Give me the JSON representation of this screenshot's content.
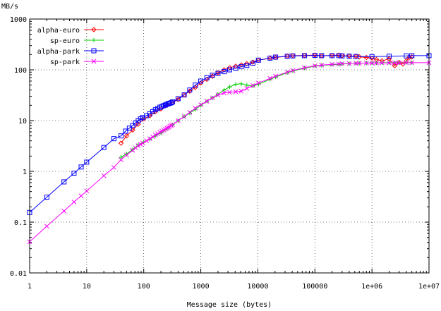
{
  "chart_data": {
    "type": "line",
    "title": "",
    "xlabel": "Message size (bytes)",
    "ylabel": "MB/s",
    "xscale": "log",
    "yscale": "log",
    "xlim": [
      1,
      10000000
    ],
    "ylim": [
      0.01,
      1000
    ],
    "grid": true,
    "legend_position": "top-left",
    "x_ticks": [
      {
        "value": 1,
        "label": "1"
      },
      {
        "value": 10,
        "label": "10"
      },
      {
        "value": 100,
        "label": "100"
      },
      {
        "value": 1000,
        "label": "1000"
      },
      {
        "value": 10000,
        "label": "10000"
      },
      {
        "value": 100000,
        "label": "100000"
      },
      {
        "value": 1000000,
        "label": "1e+06"
      },
      {
        "value": 10000000,
        "label": "1e+07"
      }
    ],
    "y_ticks": [
      {
        "value": 0.01,
        "label": "0.01"
      },
      {
        "value": 0.1,
        "label": "0.1"
      },
      {
        "value": 1,
        "label": "1"
      },
      {
        "value": 10,
        "label": "10"
      },
      {
        "value": 100,
        "label": "100"
      },
      {
        "value": 1000,
        "label": "1000"
      }
    ],
    "series": [
      {
        "name": "alpha-euro",
        "color": "#ff0000",
        "marker": "diamond",
        "points": [
          [
            40,
            3.6
          ],
          [
            50,
            5.0
          ],
          [
            64,
            6.5
          ],
          [
            80,
            8.5
          ],
          [
            100,
            10.8
          ],
          [
            128,
            12.5
          ],
          [
            160,
            15.0
          ],
          [
            200,
            17.0
          ],
          [
            256,
            20.0
          ],
          [
            320,
            23.0
          ],
          [
            400,
            26.0
          ],
          [
            512,
            32.0
          ],
          [
            640,
            38.0
          ],
          [
            800,
            45.0
          ],
          [
            1000,
            55.0
          ],
          [
            1280,
            65.0
          ],
          [
            1600,
            75.0
          ],
          [
            2000,
            88.0
          ],
          [
            2560,
            100.0
          ],
          [
            3200,
            110.0
          ],
          [
            4096,
            118.0
          ],
          [
            5120,
            125.0
          ],
          [
            6400,
            132.0
          ],
          [
            8192,
            142.0
          ],
          [
            10240,
            155.0
          ],
          [
            16384,
            168.0
          ],
          [
            20480,
            175.0
          ],
          [
            32768,
            185.0
          ],
          [
            40960,
            190.0
          ],
          [
            65536,
            192.0
          ],
          [
            100000,
            195.0
          ],
          [
            131072,
            188.0
          ],
          [
            200000,
            192.0
          ],
          [
            262144,
            195.0
          ],
          [
            300000,
            190.0
          ],
          [
            400000,
            188.0
          ],
          [
            524288,
            185.0
          ],
          [
            600000,
            180.0
          ],
          [
            800000,
            175.0
          ],
          [
            1000000,
            170.0
          ],
          [
            1200000,
            160.0
          ],
          [
            1500000,
            150.0
          ],
          [
            2000000,
            165.0
          ],
          [
            2500000,
            120.0
          ],
          [
            3000000,
            140.0
          ],
          [
            3500000,
            130.0
          ],
          [
            4000000,
            150.0
          ],
          [
            4500000,
            175.0
          ],
          [
            5000000,
            180.0
          ]
        ]
      },
      {
        "name": "sp-euro",
        "color": "#00cc00",
        "marker": "plus",
        "points": [
          [
            40,
            1.9
          ],
          [
            50,
            2.2
          ],
          [
            64,
            2.7
          ],
          [
            80,
            3.3
          ],
          [
            100,
            3.8
          ],
          [
            128,
            4.3
          ],
          [
            160,
            5.0
          ],
          [
            200,
            5.7
          ],
          [
            256,
            6.8
          ],
          [
            320,
            8.3
          ],
          [
            400,
            10.0
          ],
          [
            512,
            12.0
          ],
          [
            640,
            14.0
          ],
          [
            800,
            16.5
          ],
          [
            1000,
            20.0
          ],
          [
            1280,
            24.0
          ],
          [
            1600,
            28.0
          ],
          [
            2000,
            33.0
          ],
          [
            2560,
            40.0
          ],
          [
            3200,
            46.0
          ],
          [
            4096,
            52.0
          ],
          [
            5120,
            53.0
          ],
          [
            6400,
            50.0
          ],
          [
            8192,
            48.0
          ],
          [
            10240,
            52.0
          ],
          [
            16384,
            65.0
          ],
          [
            20480,
            72.0
          ],
          [
            32768,
            88.0
          ],
          [
            40960,
            95.0
          ],
          [
            65536,
            108.0
          ],
          [
            100000,
            118.0
          ],
          [
            131072,
            122.0
          ],
          [
            200000,
            126.0
          ],
          [
            262144,
            128.0
          ],
          [
            300000,
            130.0
          ],
          [
            400000,
            132.0
          ],
          [
            524288,
            134.0
          ],
          [
            600000,
            135.0
          ],
          [
            800000,
            136.0
          ],
          [
            1000000,
            137.0
          ],
          [
            1200000,
            137.0
          ],
          [
            1500000,
            138.0
          ],
          [
            2000000,
            138.0
          ],
          [
            2500000,
            138.0
          ],
          [
            3000000,
            138.0
          ],
          [
            4000000,
            139.0
          ],
          [
            5000000,
            139.0
          ]
        ]
      },
      {
        "name": "alpha-park",
        "color": "#0000ff",
        "marker": "square",
        "points": [
          [
            1,
            0.155
          ],
          [
            2,
            0.31
          ],
          [
            4,
            0.62
          ],
          [
            6,
            0.92
          ],
          [
            8,
            1.22
          ],
          [
            10,
            1.52
          ],
          [
            20,
            2.95
          ],
          [
            30,
            4.4
          ],
          [
            40,
            5.0
          ],
          [
            48,
            6.2
          ],
          [
            56,
            7.1
          ],
          [
            64,
            8.0
          ],
          [
            72,
            9.0
          ],
          [
            80,
            10.0
          ],
          [
            88,
            10.8
          ],
          [
            96,
            11.5
          ],
          [
            112,
            12.5
          ],
          [
            128,
            13.6
          ],
          [
            144,
            15.0
          ],
          [
            160,
            16.3
          ],
          [
            176,
            17.3
          ],
          [
            192,
            18.3
          ],
          [
            208,
            19.0
          ],
          [
            224,
            19.7
          ],
          [
            240,
            20.3
          ],
          [
            256,
            21.0
          ],
          [
            272,
            21.6
          ],
          [
            288,
            22.0
          ],
          [
            304,
            22.5
          ],
          [
            320,
            23.3
          ],
          [
            400,
            27.0
          ],
          [
            512,
            32.0
          ],
          [
            640,
            40.0
          ],
          [
            800,
            50.0
          ],
          [
            1000,
            60.0
          ],
          [
            1280,
            70.0
          ],
          [
            1600,
            78.0
          ],
          [
            2000,
            85.0
          ],
          [
            2560,
            92.0
          ],
          [
            3200,
            100.0
          ],
          [
            4096,
            108.0
          ],
          [
            5120,
            115.0
          ],
          [
            6400,
            122.0
          ],
          [
            8192,
            135.0
          ],
          [
            10240,
            155.0
          ],
          [
            16384,
            170.0
          ],
          [
            20480,
            178.0
          ],
          [
            32768,
            185.0
          ],
          [
            40960,
            188.0
          ],
          [
            65536,
            190.0
          ],
          [
            100000,
            192.0
          ],
          [
            131072,
            190.0
          ],
          [
            200000,
            190.0
          ],
          [
            262144,
            190.0
          ],
          [
            300000,
            188.0
          ],
          [
            400000,
            185.0
          ],
          [
            524288,
            183.0
          ],
          [
            1000000,
            182.0
          ],
          [
            2000000,
            185.0
          ],
          [
            4000000,
            188.0
          ],
          [
            5000000,
            190.0
          ],
          [
            10000000,
            190.0
          ]
        ]
      },
      {
        "name": "sp-park",
        "color": "#ff00ff",
        "marker": "cross",
        "points": [
          [
            1,
            0.041
          ],
          [
            2,
            0.083
          ],
          [
            4,
            0.165
          ],
          [
            6,
            0.25
          ],
          [
            8,
            0.33
          ],
          [
            10,
            0.41
          ],
          [
            20,
            0.82
          ],
          [
            30,
            1.2
          ],
          [
            40,
            1.7
          ],
          [
            50,
            2.1
          ],
          [
            64,
            2.6
          ],
          [
            72,
            2.9
          ],
          [
            80,
            3.2
          ],
          [
            88,
            3.4
          ],
          [
            96,
            3.6
          ],
          [
            112,
            4.0
          ],
          [
            128,
            4.4
          ],
          [
            144,
            4.8
          ],
          [
            160,
            5.2
          ],
          [
            176,
            5.5
          ],
          [
            192,
            5.9
          ],
          [
            208,
            6.2
          ],
          [
            224,
            6.5
          ],
          [
            240,
            6.8
          ],
          [
            256,
            7.1
          ],
          [
            272,
            7.4
          ],
          [
            288,
            7.7
          ],
          [
            304,
            8.0
          ],
          [
            320,
            8.3
          ],
          [
            400,
            10.0
          ],
          [
            512,
            12.0
          ],
          [
            640,
            14.5
          ],
          [
            800,
            17.5
          ],
          [
            1000,
            20.5
          ],
          [
            1280,
            24.0
          ],
          [
            1600,
            28.0
          ],
          [
            2000,
            32.0
          ],
          [
            2560,
            35.0
          ],
          [
            3200,
            36.0
          ],
          [
            4096,
            37.0
          ],
          [
            5120,
            38.0
          ],
          [
            6400,
            43.0
          ],
          [
            8192,
            49.0
          ],
          [
            10240,
            55.0
          ],
          [
            16384,
            68.0
          ],
          [
            20480,
            75.0
          ],
          [
            32768,
            90.0
          ],
          [
            40960,
            97.0
          ],
          [
            65536,
            110.0
          ],
          [
            100000,
            120.0
          ],
          [
            131072,
            124.0
          ],
          [
            200000,
            128.0
          ],
          [
            262144,
            130.0
          ],
          [
            300000,
            132.0
          ],
          [
            400000,
            133.0
          ],
          [
            524288,
            134.0
          ],
          [
            600000,
            135.0
          ],
          [
            800000,
            136.0
          ],
          [
            1000000,
            136.0
          ],
          [
            1200000,
            136.0
          ],
          [
            1500000,
            137.0
          ],
          [
            2000000,
            137.0
          ],
          [
            2500000,
            137.0
          ],
          [
            3000000,
            137.0
          ],
          [
            4000000,
            138.0
          ],
          [
            5000000,
            138.0
          ],
          [
            10000000,
            138.0
          ]
        ]
      }
    ]
  }
}
